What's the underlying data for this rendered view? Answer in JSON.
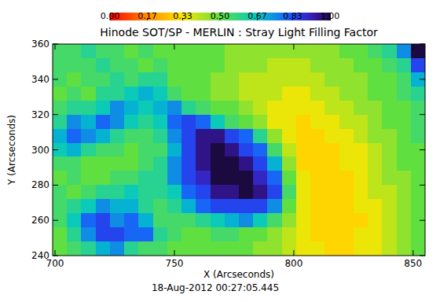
{
  "chart_data": {
    "type": "heatmap",
    "title": "Hinode SOT/SP - MERLIN : Stray Light Filling Factor",
    "x_label": "X (Arcseconds)",
    "y_label": "Y (Arcseconds)",
    "annotation": "18-Aug-2012 00:27:05.445",
    "x": [
      702,
      708,
      714,
      720,
      726,
      732,
      738,
      744,
      750,
      756,
      762,
      768,
      774,
      780,
      786,
      792,
      798,
      804,
      810,
      816,
      822,
      828,
      834,
      840,
      846,
      852
    ],
    "y": [
      356,
      348,
      340,
      332,
      324,
      316,
      308,
      300,
      292,
      284,
      276,
      268,
      260,
      252,
      244
    ],
    "values": [
      [
        0.55,
        0.55,
        0.6,
        0.55,
        0.55,
        0.5,
        0.55,
        0.5,
        0.5,
        0.5,
        0.5,
        0.5,
        0.45,
        0.45,
        0.45,
        0.45,
        0.45,
        0.45,
        0.45,
        0.45,
        0.5,
        0.5,
        0.55,
        0.6,
        0.75,
        1.0
      ],
      [
        0.55,
        0.55,
        0.55,
        0.6,
        0.55,
        0.55,
        0.5,
        0.55,
        0.5,
        0.5,
        0.5,
        0.5,
        0.45,
        0.45,
        0.45,
        0.4,
        0.4,
        0.4,
        0.45,
        0.45,
        0.45,
        0.5,
        0.5,
        0.55,
        0.6,
        0.85
      ],
      [
        0.55,
        0.5,
        0.55,
        0.55,
        0.6,
        0.55,
        0.6,
        0.6,
        0.5,
        0.5,
        0.5,
        0.45,
        0.45,
        0.4,
        0.4,
        0.4,
        0.4,
        0.4,
        0.4,
        0.45,
        0.45,
        0.45,
        0.5,
        0.5,
        0.55,
        0.7
      ],
      [
        0.5,
        0.55,
        0.5,
        0.6,
        0.6,
        0.65,
        0.7,
        0.65,
        0.55,
        0.5,
        0.5,
        0.45,
        0.45,
        0.4,
        0.4,
        0.4,
        0.35,
        0.35,
        0.4,
        0.4,
        0.45,
        0.45,
        0.5,
        0.5,
        0.55,
        0.6
      ],
      [
        0.55,
        0.6,
        0.6,
        0.65,
        0.75,
        0.7,
        0.65,
        0.7,
        0.75,
        0.6,
        0.55,
        0.5,
        0.5,
        0.45,
        0.4,
        0.35,
        0.35,
        0.35,
        0.35,
        0.4,
        0.4,
        0.45,
        0.45,
        0.5,
        0.5,
        0.55
      ],
      [
        0.6,
        0.75,
        0.7,
        0.8,
        0.75,
        0.65,
        0.6,
        0.65,
        0.8,
        0.85,
        0.8,
        0.65,
        0.55,
        0.5,
        0.45,
        0.35,
        0.35,
        0.3,
        0.35,
        0.35,
        0.4,
        0.4,
        0.45,
        0.5,
        0.5,
        0.55
      ],
      [
        0.7,
        0.8,
        0.75,
        0.7,
        0.6,
        0.55,
        0.55,
        0.6,
        0.75,
        0.85,
        0.95,
        0.95,
        0.85,
        0.8,
        0.6,
        0.45,
        0.35,
        0.3,
        0.3,
        0.35,
        0.35,
        0.4,
        0.45,
        0.45,
        0.5,
        0.55
      ],
      [
        0.65,
        0.7,
        0.6,
        0.55,
        0.55,
        0.5,
        0.55,
        0.55,
        0.7,
        0.85,
        0.95,
        1.0,
        0.95,
        0.85,
        0.8,
        0.55,
        0.4,
        0.3,
        0.3,
        0.3,
        0.35,
        0.35,
        0.4,
        0.45,
        0.5,
        0.5
      ],
      [
        0.55,
        0.55,
        0.5,
        0.5,
        0.5,
        0.5,
        0.55,
        0.6,
        0.75,
        0.85,
        0.95,
        1.0,
        1.0,
        0.95,
        0.85,
        0.7,
        0.45,
        0.3,
        0.3,
        0.3,
        0.35,
        0.35,
        0.4,
        0.45,
        0.5,
        0.5
      ],
      [
        0.5,
        0.55,
        0.5,
        0.5,
        0.55,
        0.55,
        0.6,
        0.6,
        0.75,
        0.85,
        0.9,
        1.0,
        1.0,
        1.0,
        0.9,
        0.8,
        0.5,
        0.35,
        0.3,
        0.3,
        0.3,
        0.35,
        0.4,
        0.45,
        0.45,
        0.5
      ],
      [
        0.55,
        0.5,
        0.55,
        0.6,
        0.6,
        0.65,
        0.6,
        0.6,
        0.65,
        0.8,
        0.85,
        0.95,
        0.95,
        1.0,
        0.95,
        0.85,
        0.55,
        0.35,
        0.3,
        0.3,
        0.3,
        0.35,
        0.4,
        0.4,
        0.45,
        0.5
      ],
      [
        0.55,
        0.6,
        0.65,
        0.75,
        0.7,
        0.7,
        0.6,
        0.55,
        0.6,
        0.7,
        0.8,
        0.85,
        0.85,
        0.85,
        0.85,
        0.75,
        0.5,
        0.35,
        0.3,
        0.3,
        0.3,
        0.35,
        0.35,
        0.4,
        0.45,
        0.5
      ],
      [
        0.55,
        0.65,
        0.8,
        0.85,
        0.75,
        0.8,
        0.7,
        0.55,
        0.55,
        0.55,
        0.6,
        0.65,
        0.7,
        0.75,
        0.65,
        0.55,
        0.45,
        0.35,
        0.3,
        0.3,
        0.3,
        0.3,
        0.35,
        0.4,
        0.45,
        0.5
      ],
      [
        0.5,
        0.6,
        0.75,
        0.85,
        0.85,
        0.8,
        0.8,
        0.6,
        0.55,
        0.5,
        0.5,
        0.55,
        0.55,
        0.5,
        0.5,
        0.45,
        0.4,
        0.35,
        0.3,
        0.3,
        0.3,
        0.35,
        0.35,
        0.4,
        0.45,
        0.5
      ],
      [
        0.5,
        0.55,
        0.6,
        0.7,
        0.75,
        0.6,
        0.55,
        0.55,
        0.5,
        0.5,
        0.5,
        0.5,
        0.5,
        0.5,
        0.45,
        0.45,
        0.4,
        0.35,
        0.35,
        0.3,
        0.3,
        0.35,
        0.35,
        0.4,
        0.45,
        0.5
      ]
    ],
    "xlim": [
      699,
      855
    ],
    "ylim": [
      240,
      360
    ],
    "xticks": [
      700,
      750,
      800,
      850
    ],
    "yticks": [
      240,
      260,
      280,
      300,
      320,
      340,
      360
    ],
    "colorbar_range": [
      0,
      1
    ],
    "colorbar_ticks": [
      {
        "value": 0,
        "label": "0.00"
      },
      {
        "value": 0.17,
        "label": "0.17"
      },
      {
        "value": 0.33,
        "label": "0.33"
      },
      {
        "value": 0.5,
        "label": "0.50"
      },
      {
        "value": 0.67,
        "label": "0.67"
      },
      {
        "value": 0.83,
        "label": "0.83"
      },
      {
        "value": 1,
        "label": "1.00"
      }
    ]
  }
}
